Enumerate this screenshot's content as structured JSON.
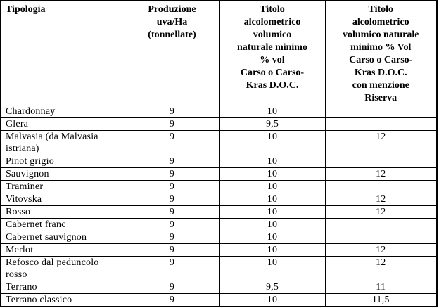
{
  "table": {
    "columns": [
      {
        "label": "Tipologia"
      },
      {
        "label": "Produzione\nuva/Ha\n(tonnellate)"
      },
      {
        "label": "Titolo\nalcolometrico\nvolumico\nnaturale minimo\n% vol\nCarso o Carso-\nKras D.O.C."
      },
      {
        "label": "Titolo\nalcolometrico\nvolumico naturale\nminimo % Vol\nCarso o Carso-\nKras D.O.C.\ncon menzione\nRiserva"
      }
    ],
    "rows": [
      {
        "tipologia": "Chardonnay",
        "produzione": "9",
        "titolo_minimo": "10",
        "titolo_riserva": ""
      },
      {
        "tipologia": "Glera",
        "produzione": "9",
        "titolo_minimo": "9,5",
        "titolo_riserva": ""
      },
      {
        "tipologia": "Malvasia (da Malvasia istriana)",
        "produzione": "9",
        "titolo_minimo": "10",
        "titolo_riserva": "12"
      },
      {
        "tipologia": "Pinot grigio",
        "produzione": "9",
        "titolo_minimo": "10",
        "titolo_riserva": ""
      },
      {
        "tipologia": "Sauvignon",
        "produzione": "9",
        "titolo_minimo": "10",
        "titolo_riserva": "12"
      },
      {
        "tipologia": "Traminer",
        "produzione": "9",
        "titolo_minimo": "10",
        "titolo_riserva": ""
      },
      {
        "tipologia": "Vitovska",
        "produzione": "9",
        "titolo_minimo": "10",
        "titolo_riserva": "12"
      },
      {
        "tipologia": "Rosso",
        "produzione": "9",
        "titolo_minimo": "10",
        "titolo_riserva": "12"
      },
      {
        "tipologia": "Cabernet franc",
        "produzione": "9",
        "titolo_minimo": "10",
        "titolo_riserva": ""
      },
      {
        "tipologia": "Cabernet sauvignon",
        "produzione": "9",
        "titolo_minimo": "10",
        "titolo_riserva": ""
      },
      {
        "tipologia": "Merlot",
        "produzione": "9",
        "titolo_minimo": "10",
        "titolo_riserva": "12"
      },
      {
        "tipologia": "Refosco dal peduncolo rosso",
        "produzione": "9",
        "titolo_minimo": "10",
        "titolo_riserva": "12"
      },
      {
        "tipologia": "Terrano",
        "produzione": "9",
        "titolo_minimo": "9,5",
        "titolo_riserva": "11"
      },
      {
        "tipologia": "Terrano classico",
        "produzione": "9",
        "titolo_minimo": "10",
        "titolo_riserva": "11,5"
      }
    ]
  }
}
